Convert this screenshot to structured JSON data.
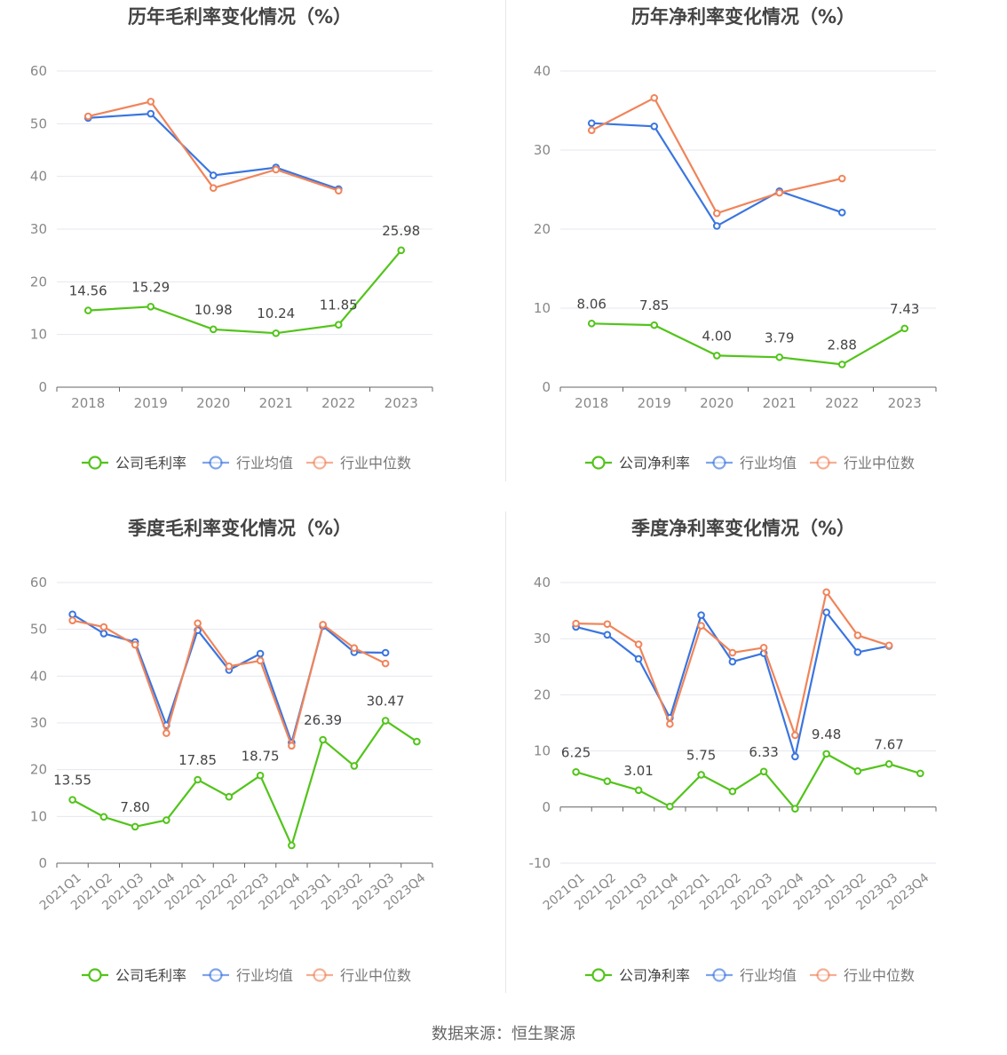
{
  "colors": {
    "company": "#52c41a",
    "avg": "#3a75e0",
    "median": "#f0845a",
    "grid": "#e5e7ef",
    "axis": "#666666",
    "text": "#333333"
  },
  "legend": {
    "avg": "行业均值",
    "median": "行业中位数"
  },
  "source": "数据来源：恒生聚源",
  "chart_data": [
    {
      "type": "line",
      "title": "历年毛利率变化情况（%）",
      "categories": [
        "2018",
        "2019",
        "2020",
        "2021",
        "2022",
        "2023"
      ],
      "ylim": [
        0,
        60
      ],
      "yticks": [
        0,
        10,
        20,
        30,
        40,
        50,
        60
      ],
      "rotate_labels": false,
      "series": [
        {
          "name": "公司毛利率",
          "key": "company",
          "values": [
            14.56,
            15.29,
            10.98,
            10.24,
            11.85,
            25.98
          ],
          "labels": [
            "14.56",
            "15.29",
            "10.98",
            "10.24",
            "11.85",
            "25.98"
          ]
        },
        {
          "name": "行业均值",
          "key": "avg",
          "values": [
            51.1,
            51.9,
            40.2,
            41.7,
            37.6,
            null
          ]
        },
        {
          "name": "行业中位数",
          "key": "median",
          "values": [
            51.4,
            54.2,
            37.8,
            41.3,
            37.3,
            null
          ]
        }
      ]
    },
    {
      "type": "line",
      "title": "历年净利率变化情况（%）",
      "categories": [
        "2018",
        "2019",
        "2020",
        "2021",
        "2022",
        "2023"
      ],
      "ylim": [
        0,
        40
      ],
      "yticks": [
        0,
        10,
        20,
        30,
        40
      ],
      "rotate_labels": false,
      "series": [
        {
          "name": "公司净利率",
          "key": "company",
          "values": [
            8.06,
            7.85,
            4.0,
            3.79,
            2.88,
            7.43
          ],
          "labels": [
            "8.06",
            "7.85",
            "4.00",
            "3.79",
            "2.88",
            "7.43"
          ]
        },
        {
          "name": "行业均值",
          "key": "avg",
          "values": [
            33.4,
            33.0,
            20.4,
            24.8,
            22.1,
            null
          ]
        },
        {
          "name": "行业中位数",
          "key": "median",
          "values": [
            32.5,
            36.6,
            22.0,
            24.6,
            26.4,
            null
          ]
        }
      ]
    },
    {
      "type": "line",
      "title": "季度毛利率变化情况（%）",
      "categories": [
        "2021Q1",
        "2021Q2",
        "2021Q3",
        "2021Q4",
        "2022Q1",
        "2022Q2",
        "2022Q3",
        "2022Q4",
        "2023Q1",
        "2023Q2",
        "2023Q3",
        "2023Q4"
      ],
      "ylim": [
        0,
        60
      ],
      "yticks": [
        0,
        10,
        20,
        30,
        40,
        50,
        60
      ],
      "rotate_labels": true,
      "series": [
        {
          "name": "公司毛利率",
          "key": "company",
          "values": [
            13.55,
            9.9,
            7.8,
            9.2,
            17.85,
            14.2,
            18.75,
            3.8,
            26.39,
            20.8,
            30.47,
            26.0
          ],
          "labels": [
            "13.55",
            "",
            "7.80",
            "",
            "17.85",
            "",
            "18.75",
            "",
            "26.39",
            "",
            "30.47",
            ""
          ]
        },
        {
          "name": "行业均值",
          "key": "avg",
          "values": [
            53.2,
            49.1,
            47.3,
            29.5,
            49.8,
            41.3,
            44.8,
            25.8,
            50.7,
            45.1,
            45.0,
            null
          ]
        },
        {
          "name": "行业中位数",
          "key": "median",
          "values": [
            51.9,
            50.5,
            46.7,
            27.8,
            51.3,
            42.1,
            43.3,
            25.1,
            51.0,
            46.0,
            42.7,
            null
          ]
        }
      ]
    },
    {
      "type": "line",
      "title": "季度净利率变化情况（%）",
      "categories": [
        "2021Q1",
        "2021Q2",
        "2021Q3",
        "2021Q4",
        "2022Q1",
        "2022Q2",
        "2022Q3",
        "2022Q4",
        "2023Q1",
        "2023Q2",
        "2023Q3",
        "2023Q4"
      ],
      "ylim": [
        -10,
        40
      ],
      "yticks": [
        -10,
        0,
        10,
        20,
        30,
        40
      ],
      "rotate_labels": true,
      "series": [
        {
          "name": "公司净利率",
          "key": "company",
          "values": [
            6.25,
            4.6,
            3.01,
            0.1,
            5.75,
            2.8,
            6.33,
            -0.3,
            9.48,
            6.4,
            7.67,
            6.0
          ],
          "labels": [
            "6.25",
            "",
            "3.01",
            "",
            "5.75",
            "",
            "6.33",
            "",
            "9.48",
            "",
            "7.67",
            ""
          ]
        },
        {
          "name": "行业均值",
          "key": "avg",
          "values": [
            32.1,
            30.7,
            26.4,
            15.9,
            34.2,
            25.9,
            27.4,
            9.0,
            34.7,
            27.6,
            28.7,
            null
          ]
        },
        {
          "name": "行业中位数",
          "key": "median",
          "values": [
            32.7,
            32.6,
            29.0,
            14.8,
            32.3,
            27.5,
            28.4,
            12.8,
            38.3,
            30.6,
            28.8,
            null
          ]
        }
      ]
    }
  ]
}
